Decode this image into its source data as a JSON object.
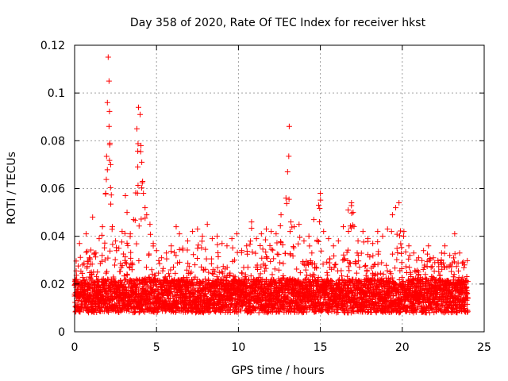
{
  "chart_data": {
    "type": "scatter",
    "title": "Day 358 of 2020, Rate Of TEC Index for receiver hkst",
    "xlabel": "GPS time / hours",
    "ylabel": "ROTI / TECUs",
    "xlim": [
      0,
      25
    ],
    "ylim": [
      0,
      0.12
    ],
    "xticks": [
      "0",
      "5",
      "10",
      "15",
      "20",
      "25"
    ],
    "xtick_values": [
      0,
      5,
      10,
      15,
      20,
      25
    ],
    "yticks": [
      "0",
      "0.02",
      "0.04",
      "0.06",
      "0.08",
      "0.1",
      "0.12"
    ],
    "ytick_values": [
      0,
      0.02,
      0.04,
      0.06,
      0.08,
      0.1,
      0.12
    ],
    "grid": true,
    "marker": "+",
    "color": "#ff0000",
    "series": [
      {
        "name": "ROTI",
        "x": [
          0.1,
          0.3,
          0.5,
          0.7,
          0.9,
          1.1,
          1.3,
          1.5,
          1.7,
          1.9,
          2.0,
          2.05,
          2.1,
          2.1,
          2.15,
          2.2,
          2.3,
          2.5,
          2.7,
          2.9,
          3.1,
          3.2,
          3.4,
          3.6,
          3.8,
          3.9,
          4.0,
          4.05,
          4.1,
          4.15,
          4.2,
          4.3,
          4.4,
          4.6,
          4.8,
          5.0,
          5.3,
          5.6,
          5.9,
          6.2,
          6.4,
          6.6,
          6.9,
          7.2,
          7.5,
          7.8,
          8.1,
          8.4,
          8.7,
          9.0,
          9.3,
          9.6,
          9.9,
          10.2,
          10.5,
          10.8,
          11.1,
          11.4,
          11.7,
          12.0,
          12.3,
          12.6,
          12.9,
          13.0,
          13.1,
          13.2,
          13.4,
          13.7,
          14.0,
          14.3,
          14.6,
          14.9,
          15.0,
          15.2,
          15.5,
          15.8,
          16.1,
          16.4,
          16.7,
          16.9,
          17.0,
          17.3,
          17.6,
          17.9,
          18.2,
          18.5,
          18.8,
          19.1,
          19.4,
          19.6,
          19.8,
          20.1,
          20.4,
          20.7,
          21.0,
          21.3,
          21.6,
          21.9,
          22.2,
          22.4,
          22.6,
          22.9,
          23.2,
          23.5,
          23.8
        ],
        "y": [
          0.021,
          0.037,
          0.028,
          0.041,
          0.031,
          0.048,
          0.033,
          0.039,
          0.044,
          0.058,
          0.096,
          0.115,
          0.105,
          0.086,
          0.079,
          0.07,
          0.044,
          0.038,
          0.035,
          0.042,
          0.057,
          0.05,
          0.041,
          0.047,
          0.085,
          0.094,
          0.091,
          0.078,
          0.071,
          0.063,
          0.058,
          0.052,
          0.049,
          0.045,
          0.037,
          0.034,
          0.031,
          0.033,
          0.036,
          0.044,
          0.041,
          0.035,
          0.038,
          0.042,
          0.043,
          0.04,
          0.045,
          0.039,
          0.04,
          0.037,
          0.036,
          0.039,
          0.041,
          0.034,
          0.036,
          0.046,
          0.039,
          0.041,
          0.043,
          0.042,
          0.041,
          0.049,
          0.056,
          0.067,
          0.086,
          0.046,
          0.044,
          0.045,
          0.038,
          0.04,
          0.047,
          0.053,
          0.058,
          0.042,
          0.039,
          0.036,
          0.038,
          0.044,
          0.051,
          0.054,
          0.05,
          0.038,
          0.042,
          0.039,
          0.037,
          0.042,
          0.04,
          0.043,
          0.049,
          0.052,
          0.054,
          0.042,
          0.036,
          0.033,
          0.031,
          0.034,
          0.036,
          0.031,
          0.029,
          0.033,
          0.036,
          0.032,
          0.041,
          0.033,
          0.028
        ]
      }
    ]
  }
}
